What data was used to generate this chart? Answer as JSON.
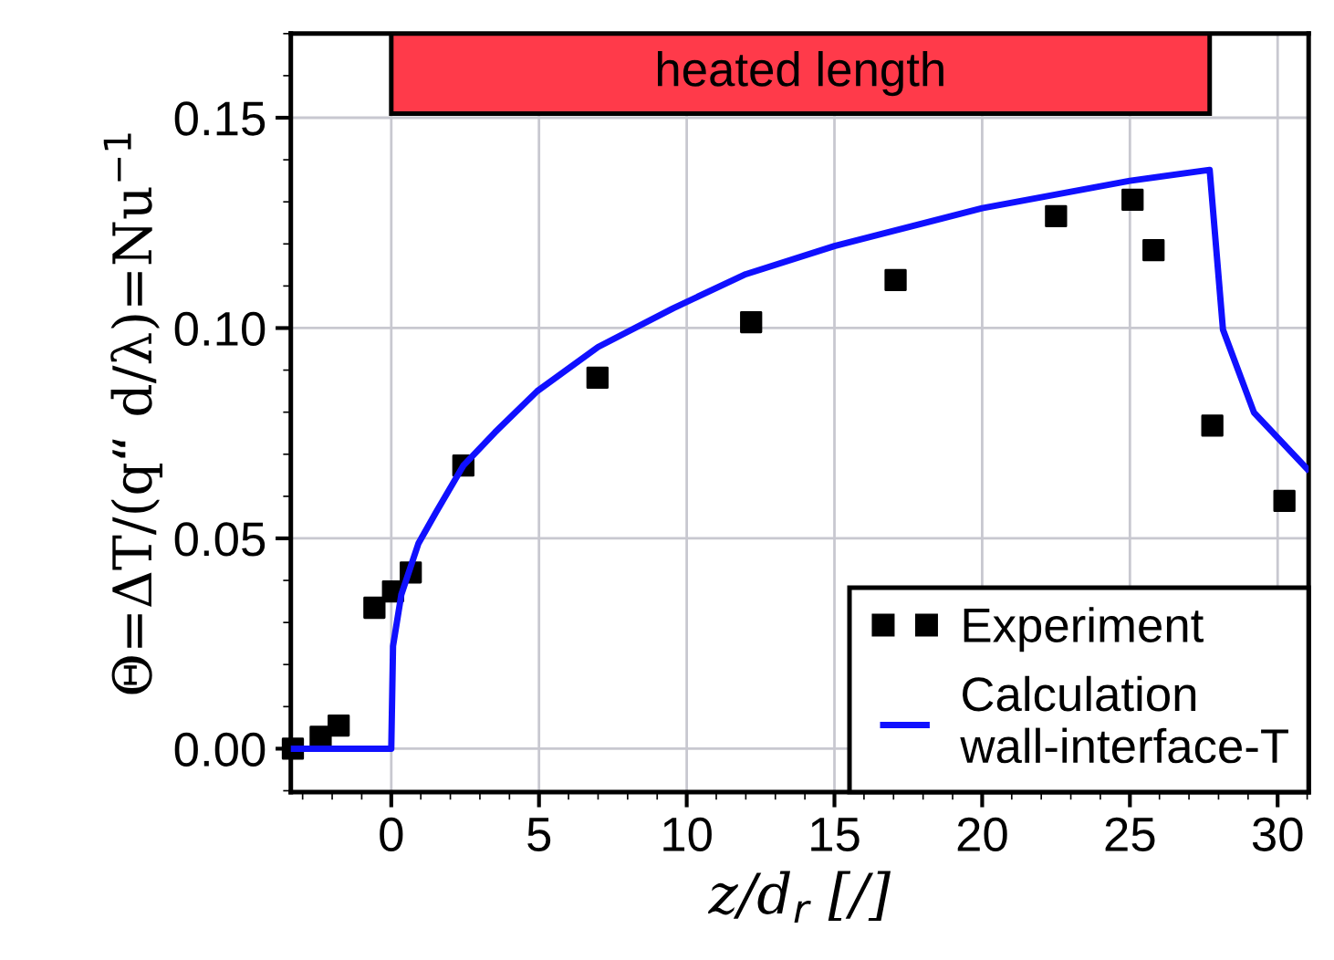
{
  "chart_data": {
    "type": "line",
    "xlabel": "z/d$_{r}$ [/]",
    "ylabel": "Θ=ΔT/(q“ d/λ)=Nu$^{−1}$",
    "xlim": [
      -3.4,
      31.05
    ],
    "ylim": [
      -0.0103,
      0.17
    ],
    "xticks": [
      0,
      5,
      10,
      15,
      20,
      25,
      30
    ],
    "yticks": [
      {
        "value": 0,
        "label": "0.00"
      },
      {
        "value": 0.05,
        "label": "0.05"
      },
      {
        "value": 0.1,
        "label": "0.10"
      },
      {
        "value": 0.15,
        "label": "0.15"
      }
    ],
    "grid": true,
    "legend": "bottom right",
    "bands": [
      {
        "axis": "x",
        "from": 0,
        "to": 27.7,
        "label": "heated length",
        "color": "#ff3a4a"
      }
    ],
    "series": [
      {
        "name": "Experiment",
        "type": "scatter",
        "marker": "square",
        "color": "#000000",
        "x": [
          -3.33,
          -2.39,
          -1.78,
          -0.57,
          0.06,
          0.66,
          2.44,
          6.98,
          12.18,
          17.07,
          22.5,
          25.09,
          25.8,
          27.79,
          30.23
        ],
        "values": [
          0.0,
          0.0028,
          0.0055,
          0.0335,
          0.0374,
          0.0419,
          0.0673,
          0.0882,
          0.1014,
          0.1114,
          0.1266,
          0.1305,
          0.1185,
          0.0768,
          0.0589
        ]
      },
      {
        "name": "Calculation\nwall-interface-T",
        "color": "#1010ff",
        "marker": "none",
        "x": [
          -3.4,
          0.0,
          0.06,
          0.34,
          0.92,
          1.5,
          2.44,
          3.51,
          4.94,
          7.0,
          9.54,
          12.0,
          15.0,
          20.0,
          25.0,
          27.7,
          28.15,
          29.2,
          31.0
        ],
        "values": [
          0.0,
          0.0,
          0.0244,
          0.0366,
          0.0488,
          0.056,
          0.0673,
          0.0752,
          0.085,
          0.0955,
          0.1047,
          0.1128,
          0.1195,
          0.1285,
          0.135,
          0.1376,
          0.0996,
          0.0799,
          0.0665
        ]
      }
    ]
  }
}
